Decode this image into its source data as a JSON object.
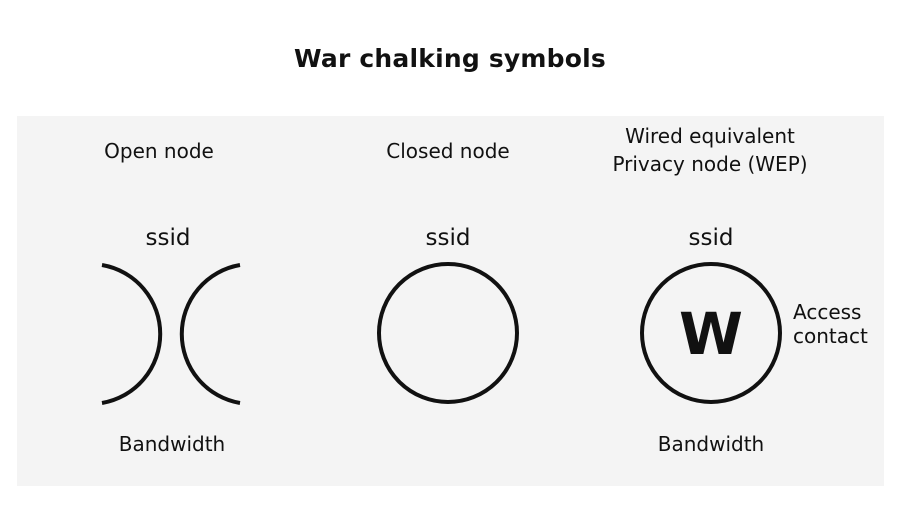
{
  "title": "War chalking symbols",
  "symbols": [
    {
      "heading": "Open node",
      "top_label": "ssid",
      "bottom_label": "Bandwidth"
    },
    {
      "heading": "Closed node",
      "top_label": "ssid"
    },
    {
      "heading_lines": [
        "Wired equivalent",
        "Privacy node (WEP)"
      ],
      "top_label": "ssid",
      "center_letter": "W",
      "side_label_lines": [
        "Access",
        "contact"
      ],
      "bottom_label": "Bandwidth"
    }
  ],
  "colors": {
    "stroke": "#111111",
    "panel": "#f4f4f4"
  }
}
